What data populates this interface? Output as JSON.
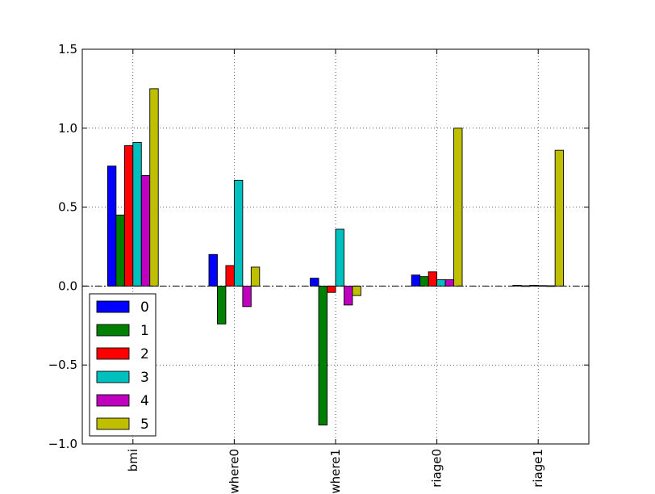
{
  "chart_data": {
    "type": "bar",
    "categories": [
      "bmi",
      "where0",
      "where1",
      "riage0",
      "riage1"
    ],
    "series": [
      {
        "name": "0",
        "color": "#0000ff",
        "values": [
          0.76,
          0.2,
          0.05,
          0.07,
          0.005
        ]
      },
      {
        "name": "1",
        "color": "#008000",
        "values": [
          0.45,
          -0.24,
          -0.88,
          0.06,
          0.002
        ]
      },
      {
        "name": "2",
        "color": "#ff0000",
        "values": [
          0.89,
          0.13,
          -0.04,
          0.09,
          0.005
        ]
      },
      {
        "name": "3",
        "color": "#00bfbf",
        "values": [
          0.91,
          0.67,
          0.36,
          0.04,
          0.003
        ]
      },
      {
        "name": "4",
        "color": "#bf00bf",
        "values": [
          0.7,
          -0.13,
          -0.12,
          0.04,
          0.002
        ]
      },
      {
        "name": "5",
        "color": "#bfbf00",
        "values": [
          1.25,
          0.12,
          -0.06,
          1.0,
          0.86
        ]
      }
    ],
    "ylim": [
      -1.0,
      1.5
    ],
    "yticks": [
      -1.0,
      -0.5,
      0.0,
      0.5,
      1.0,
      1.5
    ],
    "ytick_labels": [
      "−1.0",
      "−0.5",
      "0.0",
      "0.5",
      "1.0",
      "1.5"
    ],
    "grid": true,
    "zero_line": "dash-dot",
    "legend": "bottom-left",
    "xlabel": "",
    "ylabel": "",
    "title": ""
  }
}
